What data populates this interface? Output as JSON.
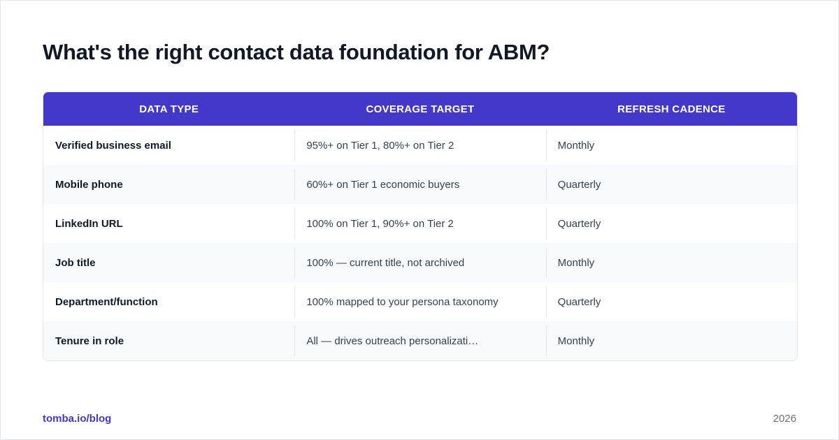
{
  "title": "What's the right contact data foundation for ABM?",
  "colors": {
    "accent": "#4338ca",
    "header_text": "#ffffff",
    "row_alt": "#f8f9fb",
    "title_text": "#111827"
  },
  "table": {
    "headers": [
      "DATA TYPE",
      "COVERAGE TARGET",
      "REFRESH CADENCE"
    ],
    "rows": [
      [
        "Verified business email",
        "95%+ on Tier 1, 80%+ on Tier 2",
        "Monthly"
      ],
      [
        "Mobile phone",
        "60%+ on Tier 1 economic buyers",
        "Quarterly"
      ],
      [
        "LinkedIn URL",
        "100% on Tier 1, 90%+ on Tier 2",
        "Quarterly"
      ],
      [
        "Job title",
        "100% — current title, not archived",
        "Monthly"
      ],
      [
        "Department/function",
        "100% mapped to your persona taxonomy",
        "Quarterly"
      ],
      [
        "Tenure in role",
        "All — drives outreach personalizati…",
        "Monthly"
      ]
    ]
  },
  "footer": {
    "source": "tomba.io/blog",
    "year": "2026"
  }
}
